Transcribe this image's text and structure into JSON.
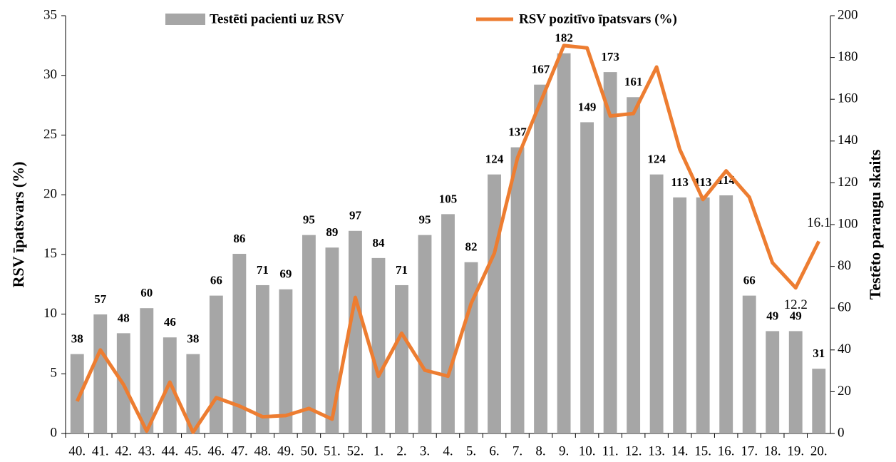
{
  "chart_data": {
    "type": "bar+line",
    "categories": [
      "40.",
      "41.",
      "42.",
      "43.",
      "44.",
      "45.",
      "46.",
      "47.",
      "48.",
      "49.",
      "50.",
      "51.",
      "52.",
      "1.",
      "2.",
      "3.",
      "4.",
      "5.",
      "6.",
      "7.",
      "8.",
      "9.",
      "10.",
      "11.",
      "12.",
      "13.",
      "14.",
      "15.",
      "16.",
      "17.",
      "18.",
      "19.",
      "20."
    ],
    "series": [
      {
        "name": "Testēti pacienti uz RSV",
        "type": "bar",
        "axis": "y2",
        "color": "#a6a6a6",
        "values": [
          38,
          57,
          48,
          60,
          46,
          38,
          66,
          86,
          71,
          69,
          95,
          89,
          97,
          84,
          71,
          95,
          105,
          82,
          124,
          137,
          167,
          182,
          149,
          173,
          161,
          124,
          113,
          113,
          114,
          66,
          49,
          49,
          31
        ]
      },
      {
        "name": "RSV pozitīvo īpatsvars (%)",
        "type": "line",
        "axis": "y",
        "color": "#ed7d31",
        "values": [
          2.7,
          7.0,
          4.1,
          0.2,
          4.3,
          0.1,
          3.0,
          2.3,
          1.4,
          1.5,
          2.1,
          1.2,
          11.4,
          4.8,
          8.4,
          5.3,
          4.8,
          10.9,
          15.1,
          23.1,
          27.8,
          32.5,
          32.3,
          26.6,
          26.8,
          30.7,
          23.8,
          19.6,
          22.0,
          19.8,
          14.3,
          12.2,
          16.1
        ],
        "value_labels": [
          null,
          null,
          null,
          null,
          null,
          null,
          null,
          null,
          null,
          null,
          null,
          null,
          null,
          null,
          null,
          null,
          null,
          null,
          null,
          null,
          null,
          null,
          null,
          null,
          null,
          null,
          null,
          null,
          null,
          null,
          null,
          "12.2",
          "16.1"
        ]
      }
    ],
    "ylabel": "RSV īpatsvars (%)",
    "y2label": "Testēto paraugu skaits",
    "ylim": [
      0,
      35
    ],
    "yticks": [
      0,
      5,
      10,
      15,
      20,
      25,
      30,
      35
    ],
    "y2lim": [
      0,
      200
    ],
    "y2ticks": [
      0,
      20,
      40,
      60,
      80,
      100,
      120,
      140,
      160,
      180,
      200
    ],
    "grid": false
  }
}
